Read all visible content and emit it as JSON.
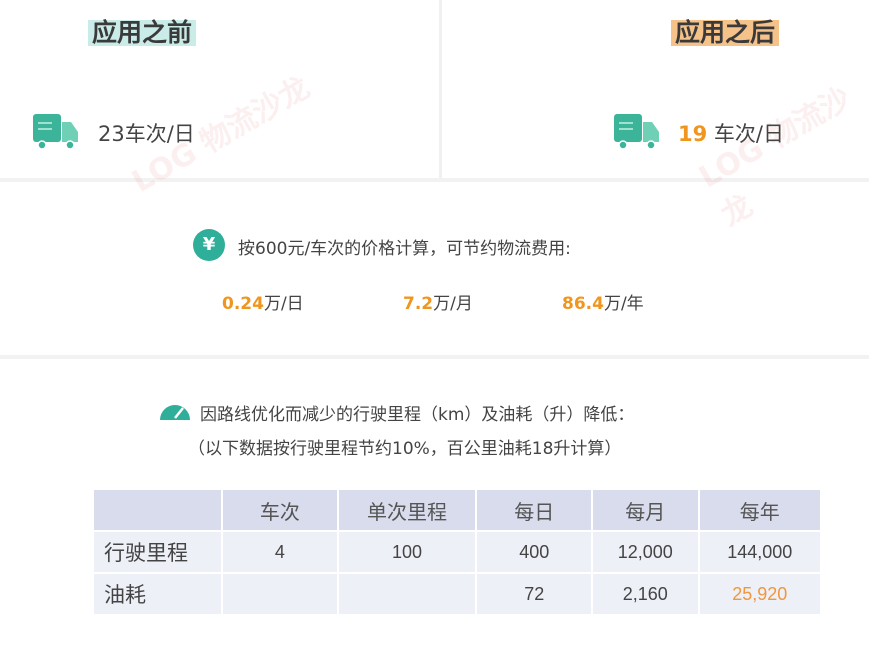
{
  "before": {
    "label": "应用之前",
    "value": "23车次/日",
    "label_bg": "#c9ece9"
  },
  "after": {
    "label": "应用之后",
    "number": "19",
    "unit": " 车次/日",
    "label_bg": "#f5c28a"
  },
  "savings": {
    "text": "按600元/车次的价格计算，可节约物流费用:",
    "items": [
      {
        "num": "0.24",
        "unit": "万/日"
      },
      {
        "num": "7.2",
        "unit": "万/月"
      },
      {
        "num": "86.4",
        "unit": "万/年"
      }
    ]
  },
  "reduction": {
    "title": "因路线优化而减少的行驶里程（km）及油耗（升）降低：",
    "note": "（以下数据按行驶里程节约10%，百公里油耗18升计算）"
  },
  "table": {
    "headers": [
      "",
      "车次",
      "单次里程",
      "每日",
      "每月",
      "每年"
    ],
    "rows": [
      [
        "行驶里程",
        "4",
        "100",
        "400",
        "12,000",
        "144,000"
      ],
      [
        "油耗",
        "",
        "",
        "72",
        "2,160",
        "25,920"
      ]
    ]
  },
  "watermark": "LOG 物流沙龙",
  "colors": {
    "accent": "#f0961e",
    "teal": "#3cb49a"
  }
}
